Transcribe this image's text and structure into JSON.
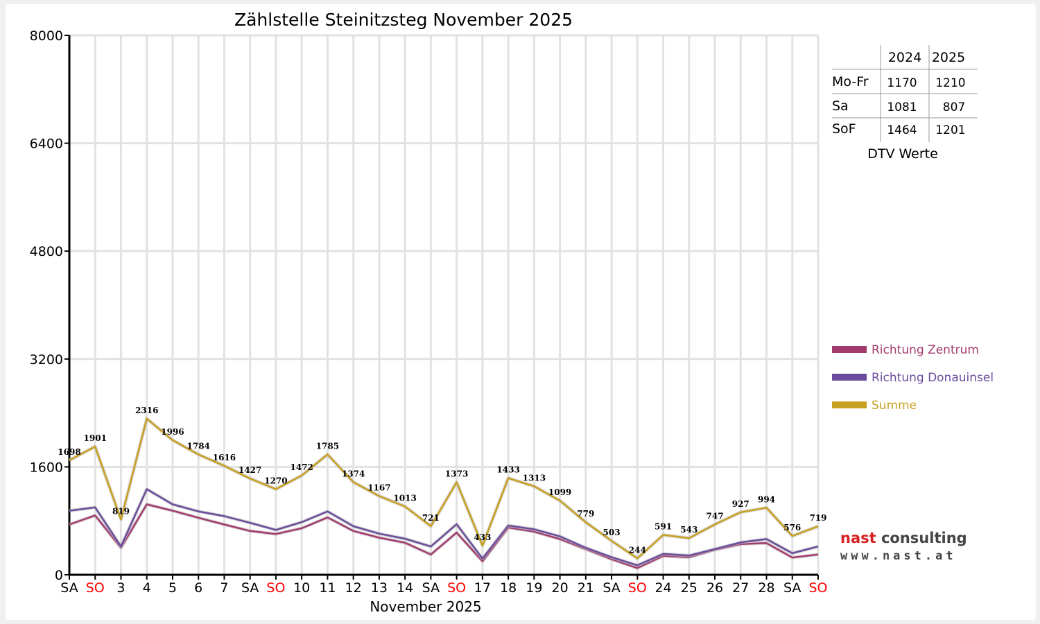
{
  "chart_data": {
    "type": "line",
    "title": "Zählstelle Steinitzsteg November 2025",
    "xlabel": "November 2025",
    "ylabel": "",
    "ylim": [
      0,
      8000
    ],
    "yticks": [
      0,
      1600,
      3200,
      4800,
      6400,
      8000
    ],
    "grid": true,
    "legend_position": "right",
    "categories": [
      "SA",
      "SO",
      "3",
      "4",
      "5",
      "6",
      "7",
      "SA",
      "SO",
      "10",
      "11",
      "12",
      "13",
      "14",
      "SA",
      "SO",
      "17",
      "18",
      "19",
      "20",
      "21",
      "SA",
      "SO",
      "24",
      "25",
      "26",
      "27",
      "28",
      "SA",
      "SO"
    ],
    "weekend_color": "#ff0000",
    "series": [
      {
        "name": "Richtung Zentrum",
        "color": "#a33a6e",
        "values": [
          745,
          880,
          400,
          1045,
          950,
          845,
          745,
          650,
          605,
          690,
          850,
          650,
          550,
          475,
          300,
          625,
          200,
          700,
          640,
          530,
          380,
          230,
          100,
          280,
          260,
          370,
          455,
          470,
          255,
          300
        ]
      },
      {
        "name": "Richtung Donauinsel",
        "color": "#6a4c9c",
        "values": [
          950,
          1000,
          420,
          1270,
          1045,
          940,
          870,
          770,
          665,
          780,
          940,
          720,
          610,
          535,
          420,
          750,
          240,
          730,
          675,
          570,
          400,
          260,
          140,
          310,
          285,
          380,
          480,
          530,
          320,
          420
        ]
      },
      {
        "name": "Summe",
        "color": "#c8a020",
        "values": [
          1698,
          1901,
          819,
          2316,
          1996,
          1784,
          1616,
          1427,
          1270,
          1472,
          1785,
          1374,
          1167,
          1013,
          721,
          1373,
          433,
          1433,
          1313,
          1099,
          779,
          503,
          244,
          591,
          543,
          747,
          927,
          994,
          576,
          719
        ],
        "labels": [
          "1698",
          "1901",
          "819",
          "2316",
          "1996",
          "1784",
          "1616",
          "1427",
          "1270",
          "1472",
          "1785",
          "1374",
          "1167",
          "1013",
          "721",
          "1373",
          "433",
          "1433",
          "1313",
          "1099",
          "779",
          "503",
          "244",
          "591",
          "543",
          "747",
          "927",
          "994",
          "576",
          "719"
        ]
      }
    ]
  },
  "dtv_table": {
    "headers": [
      "",
      "2024",
      "2025"
    ],
    "rows": [
      {
        "label": "Mo-Fr",
        "v2024": "1170",
        "v2025": "1210"
      },
      {
        "label": "Sa",
        "v2024": "1081",
        "v2025": "807"
      },
      {
        "label": "SoF",
        "v2024": "1464",
        "v2025": "1201"
      }
    ],
    "caption": "DTV Werte"
  },
  "logo": {
    "line1a": "nast ",
    "line1b": "consulting",
    "line2": "www.nast.at"
  }
}
